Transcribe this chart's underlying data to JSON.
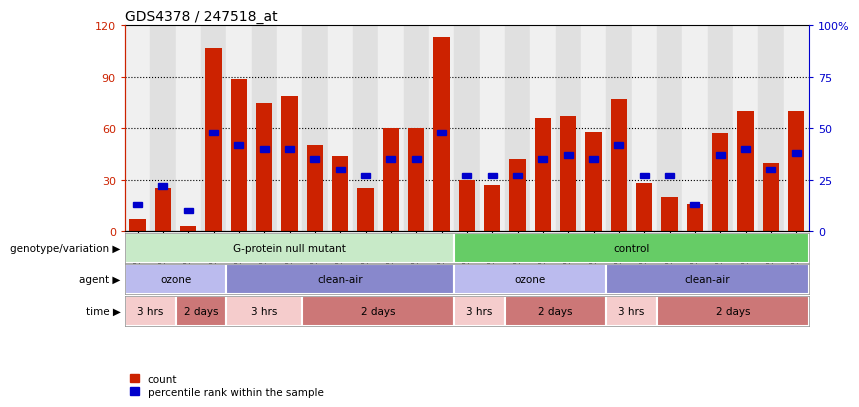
{
  "title": "GDS4378 / 247518_at",
  "samples": [
    "GSM852932",
    "GSM852933",
    "GSM852934",
    "GSM852946",
    "GSM852947",
    "GSM852948",
    "GSM852949",
    "GSM852929",
    "GSM852930",
    "GSM852931",
    "GSM852943",
    "GSM852944",
    "GSM852945",
    "GSM852926",
    "GSM852927",
    "GSM852928",
    "GSM852939",
    "GSM852940",
    "GSM852941",
    "GSM852942",
    "GSM852923",
    "GSM852924",
    "GSM852925",
    "GSM852935",
    "GSM852936",
    "GSM852937",
    "GSM852938"
  ],
  "counts": [
    7,
    25,
    3,
    107,
    89,
    75,
    79,
    50,
    44,
    25,
    60,
    60,
    113,
    30,
    27,
    42,
    66,
    67,
    58,
    77,
    28,
    20,
    16,
    57,
    70,
    40,
    70
  ],
  "percentile": [
    13,
    22,
    10,
    48,
    42,
    40,
    40,
    35,
    30,
    27,
    35,
    35,
    48,
    27,
    27,
    27,
    35,
    37,
    35,
    42,
    27,
    27,
    13,
    37,
    40,
    30,
    38
  ],
  "bar_color": "#cc2200",
  "percentile_color": "#0000cc",
  "yticks_left": [
    0,
    30,
    60,
    90,
    120
  ],
  "yticks_right": [
    0,
    25,
    50,
    75,
    100
  ],
  "geno_groups": [
    {
      "label": "G-protein null mutant",
      "start": 0,
      "end": 13,
      "color": "#c8eac8"
    },
    {
      "label": "control",
      "start": 13,
      "end": 27,
      "color": "#66cc66"
    }
  ],
  "agent_groups": [
    {
      "label": "ozone",
      "start": 0,
      "end": 4,
      "color": "#bbbbee"
    },
    {
      "label": "clean-air",
      "start": 4,
      "end": 13,
      "color": "#8888cc"
    },
    {
      "label": "ozone",
      "start": 13,
      "end": 19,
      "color": "#bbbbee"
    },
    {
      "label": "clean-air",
      "start": 19,
      "end": 27,
      "color": "#8888cc"
    }
  ],
  "time_groups": [
    {
      "label": "3 hrs",
      "start": 0,
      "end": 2,
      "color": "#f5cccc"
    },
    {
      "label": "2 days",
      "start": 2,
      "end": 4,
      "color": "#cc7777"
    },
    {
      "label": "3 hrs",
      "start": 4,
      "end": 7,
      "color": "#f5cccc"
    },
    {
      "label": "2 days",
      "start": 7,
      "end": 13,
      "color": "#cc7777"
    },
    {
      "label": "3 hrs",
      "start": 13,
      "end": 15,
      "color": "#f5cccc"
    },
    {
      "label": "2 days",
      "start": 15,
      "end": 19,
      "color": "#cc7777"
    },
    {
      "label": "3 hrs",
      "start": 19,
      "end": 21,
      "color": "#f5cccc"
    },
    {
      "label": "2 days",
      "start": 21,
      "end": 27,
      "color": "#cc7777"
    }
  ],
  "col_colors": [
    "#f0f0f0",
    "#e0e0e0"
  ]
}
